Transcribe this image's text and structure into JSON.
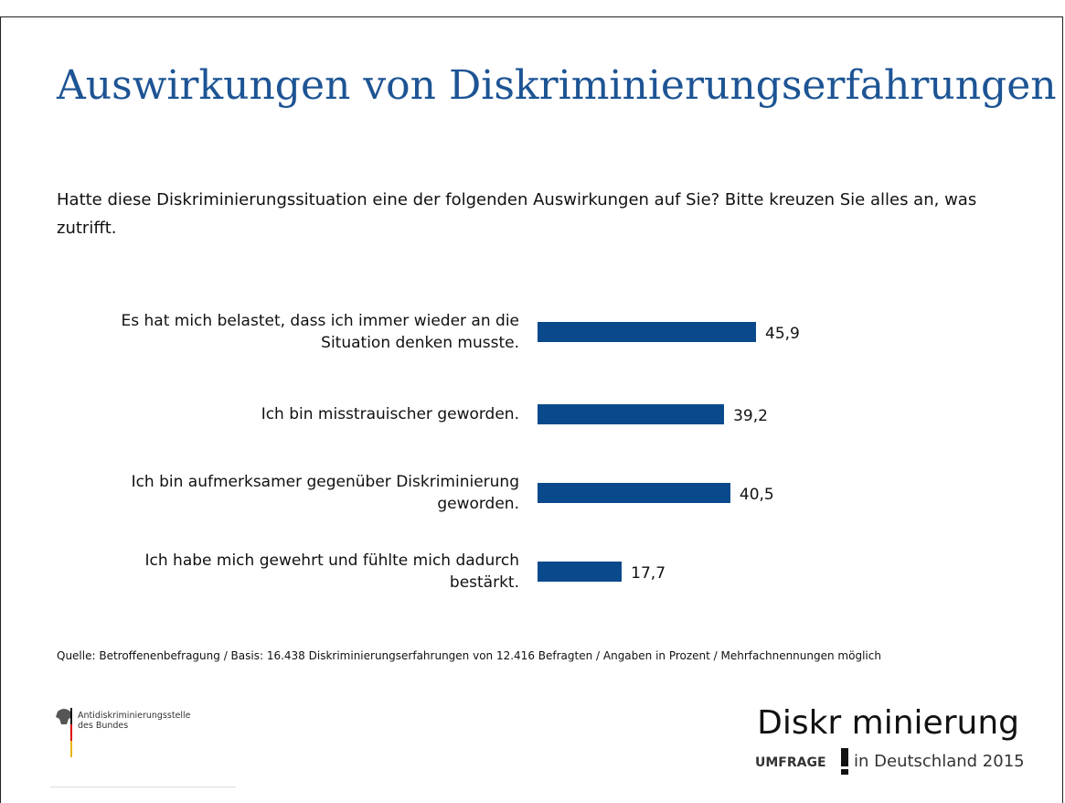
{
  "title": "Auswirkungen von Diskriminierungserfahrungen",
  "question": "Hatte diese Diskriminierungssituation eine der folgenden Auswirkungen auf Sie? Bitte kreuzen Sie alles an, was zutrifft.",
  "chart_data": {
    "type": "bar",
    "orientation": "horizontal",
    "color": "#0a4a8c",
    "categories": [
      "Es hat mich belastet, dass ich immer wieder an die Situation denken musste.",
      "Ich bin misstrauischer geworden.",
      "Ich bin aufmerksamer gegenüber Diskriminierung geworden.",
      "Ich habe mich gewehrt und fühlte mich dadurch bestärkt."
    ],
    "values": [
      45.9,
      39.2,
      40.5,
      17.7
    ],
    "value_labels": [
      "45,9",
      "39,2",
      "40,5",
      "17,7"
    ]
  },
  "source": "Quelle: Betroffenenbefragung / Basis: 16.438 Diskriminierungserfahrungen von 12.416 Befragten / Angaben in Prozent / Mehrfachnennungen möglich",
  "logo_left": {
    "line1": "Antidiskriminierungsstelle",
    "line2": "des Bundes"
  },
  "logo_right": {
    "word": "Diskr minierung",
    "tag": "UMFRAGE",
    "sub": "in Deutschland 2015"
  }
}
